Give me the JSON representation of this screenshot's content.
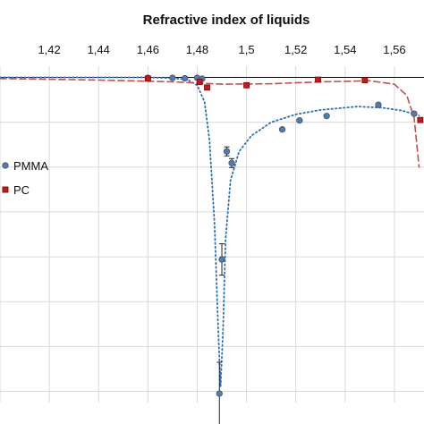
{
  "chart_data": {
    "type": "scatter",
    "title": "Refractive index of liquids",
    "x_axis_position": "top",
    "x_ticks": [
      "1,42",
      "1,44",
      "1,46",
      "1,48",
      "1,5",
      "1,52",
      "1,54",
      "1,56"
    ],
    "xlim": [
      1.4,
      1.572
    ],
    "ylim": [
      -1.45,
      0.05
    ],
    "y_tick_values": [
      0,
      -0.2,
      -0.4,
      -0.6,
      -0.8,
      -1.0,
      -1.2,
      -1.4
    ],
    "y_tick_labels_visible": false,
    "grid": "vertical-and-horizontal",
    "legend_position": "left",
    "colors": {
      "PMMA": "#4a7ebb",
      "PC": "#b22222",
      "PMMA_edge": "#555555",
      "PC_edge": "#8b0000"
    },
    "series": [
      {
        "name": "PMMA",
        "marker": "circle",
        "points": [
          {
            "x": 1.46,
            "y": -0.002
          },
          {
            "x": 1.47,
            "y": -0.002
          },
          {
            "x": 1.475,
            "y": -0.004
          },
          {
            "x": 1.48,
            "y": -0.002
          },
          {
            "x": 1.482,
            "y": -0.006
          },
          {
            "x": 1.489,
            "y": -1.41,
            "err": 0.14
          },
          {
            "x": 1.49,
            "y": -0.812,
            "err": 0.07
          },
          {
            "x": 1.492,
            "y": -0.33,
            "err": 0.02
          },
          {
            "x": 1.494,
            "y": -0.382,
            "err": 0.02
          },
          {
            "x": 1.5145,
            "y": -0.232
          },
          {
            "x": 1.5215,
            "y": -0.192
          },
          {
            "x": 1.5325,
            "y": -0.172
          },
          {
            "x": 1.5535,
            "y": -0.122
          },
          {
            "x": 1.568,
            "y": -0.162
          }
        ],
        "fit": [
          [
            1.4,
            0.0
          ],
          [
            1.46,
            0.0
          ],
          [
            1.47,
            -0.003
          ],
          [
            1.476,
            -0.01
          ],
          [
            1.48,
            -0.035
          ],
          [
            1.483,
            -0.11
          ],
          [
            1.485,
            -0.28
          ],
          [
            1.487,
            -0.65
          ],
          [
            1.4885,
            -1.12
          ],
          [
            1.4895,
            -1.38
          ],
          [
            1.4905,
            -1.12
          ],
          [
            1.4915,
            -0.72
          ],
          [
            1.4935,
            -0.46
          ],
          [
            1.497,
            -0.33
          ],
          [
            1.502,
            -0.26
          ],
          [
            1.51,
            -0.2
          ],
          [
            1.52,
            -0.165
          ],
          [
            1.53,
            -0.145
          ],
          [
            1.545,
            -0.13
          ],
          [
            1.555,
            -0.135
          ],
          [
            1.563,
            -0.148
          ],
          [
            1.57,
            -0.17
          ]
        ]
      },
      {
        "name": "PC",
        "marker": "square",
        "points": [
          {
            "x": 1.46,
            "y": -0.005
          },
          {
            "x": 1.481,
            "y": -0.02
          },
          {
            "x": 1.484,
            "y": -0.045
          },
          {
            "x": 1.5,
            "y": -0.035
          },
          {
            "x": 1.529,
            "y": -0.01
          },
          {
            "x": 1.548,
            "y": -0.012
          },
          {
            "x": 1.5705,
            "y": -0.19
          }
        ],
        "fit": [
          [
            1.4,
            -0.005
          ],
          [
            1.44,
            -0.012
          ],
          [
            1.47,
            -0.02
          ],
          [
            1.49,
            -0.03
          ],
          [
            1.51,
            -0.028
          ],
          [
            1.53,
            -0.02
          ],
          [
            1.55,
            -0.015
          ],
          [
            1.56,
            -0.03
          ],
          [
            1.565,
            -0.08
          ],
          [
            1.568,
            -0.18
          ],
          [
            1.57,
            -0.4
          ]
        ]
      }
    ]
  }
}
